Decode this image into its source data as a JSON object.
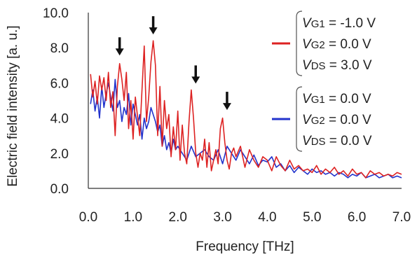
{
  "chart_data": {
    "type": "line",
    "xlabel": "Frequency [THz]",
    "ylabel": "Electric field intensity [a. u.]",
    "xlim": [
      0.0,
      7.0
    ],
    "ylim": [
      0.0,
      10.0
    ],
    "x_ticks": [
      "0.0",
      "1.0",
      "2.0",
      "3.0",
      "4.0",
      "5.0",
      "6.0",
      "7.0"
    ],
    "y_ticks": [
      "0.0",
      "2.0",
      "4.0",
      "6.0",
      "8.0",
      "10.0"
    ],
    "grid": false,
    "legend_position": "top-right",
    "series": [
      {
        "color": "#dd2222",
        "legend": [
          {
            "var": "V",
            "sub": "G1",
            "rest": " = -1.0 V"
          },
          {
            "var": "V",
            "sub": "G2",
            "rest": " =  0.0 V"
          },
          {
            "var": "V",
            "sub": "DS",
            "rest": " =  3.0 V"
          }
        ],
        "x": [
          0.05,
          0.1,
          0.15,
          0.2,
          0.25,
          0.3,
          0.35,
          0.4,
          0.45,
          0.5,
          0.55,
          0.6,
          0.65,
          0.7,
          0.75,
          0.8,
          0.85,
          0.9,
          0.95,
          1.0,
          1.05,
          1.1,
          1.15,
          1.2,
          1.25,
          1.3,
          1.35,
          1.4,
          1.45,
          1.5,
          1.55,
          1.6,
          1.65,
          1.7,
          1.75,
          1.8,
          1.85,
          1.9,
          1.95,
          2.0,
          2.05,
          2.1,
          2.15,
          2.2,
          2.25,
          2.3,
          2.35,
          2.4,
          2.45,
          2.5,
          2.55,
          2.6,
          2.65,
          2.7,
          2.75,
          2.8,
          2.85,
          2.9,
          2.95,
          3.0,
          3.05,
          3.1,
          3.15,
          3.2,
          3.25,
          3.3,
          3.4,
          3.5,
          3.6,
          3.7,
          3.8,
          3.9,
          4.0,
          4.1,
          4.2,
          4.3,
          4.4,
          4.5,
          4.6,
          4.7,
          4.8,
          4.9,
          5.0,
          5.1,
          5.2,
          5.3,
          5.4,
          5.5,
          5.6,
          5.7,
          5.8,
          5.9,
          6.0,
          6.1,
          6.2,
          6.3,
          6.4,
          6.5,
          6.6,
          6.7,
          6.8,
          6.9,
          7.0
        ],
        "values": [
          6.5,
          5.2,
          6.1,
          4.8,
          6.4,
          5.6,
          6.3,
          5.0,
          6.6,
          4.6,
          5.5,
          3.0,
          5.8,
          7.1,
          6.2,
          5.0,
          6.6,
          3.4,
          5.0,
          2.8,
          5.2,
          4.1,
          3.0,
          5.6,
          8.1,
          3.8,
          5.2,
          7.2,
          8.4,
          7.0,
          3.0,
          5.8,
          2.4,
          5.0,
          3.4,
          4.2,
          1.8,
          3.5,
          2.2,
          4.4,
          1.6,
          3.6,
          2.0,
          1.4,
          3.8,
          5.6,
          4.0,
          2.0,
          1.2,
          2.0,
          1.6,
          2.8,
          1.2,
          2.6,
          1.0,
          1.6,
          2.2,
          1.4,
          3.4,
          4.0,
          2.6,
          1.6,
          1.1,
          2.0,
          2.3,
          1.8,
          2.4,
          1.2,
          2.2,
          1.6,
          1.2,
          1.8,
          1.6,
          1.0,
          1.8,
          1.3,
          1.0,
          1.6,
          1.1,
          1.3,
          1.0,
          1.1,
          0.9,
          1.3,
          0.8,
          1.1,
          0.9,
          1.2,
          0.8,
          1.0,
          0.7,
          1.1,
          0.8,
          0.9,
          0.6,
          1.0,
          0.8,
          0.9,
          0.7,
          0.8,
          0.7,
          0.9,
          0.8
        ]
      },
      {
        "color": "#2233cc",
        "legend": [
          {
            "var": "V",
            "sub": "G1",
            "rest": " =  0.0 V"
          },
          {
            "var": "V",
            "sub": "G2",
            "rest": " =  0.0 V"
          },
          {
            "var": "V",
            "sub": "DS",
            "rest": " =  0.0 V"
          }
        ],
        "x": [
          0.05,
          0.1,
          0.15,
          0.2,
          0.25,
          0.3,
          0.35,
          0.4,
          0.45,
          0.5,
          0.55,
          0.6,
          0.65,
          0.7,
          0.75,
          0.8,
          0.85,
          0.9,
          0.95,
          1.0,
          1.05,
          1.1,
          1.15,
          1.2,
          1.25,
          1.3,
          1.35,
          1.4,
          1.45,
          1.5,
          1.55,
          1.6,
          1.65,
          1.7,
          1.75,
          1.8,
          1.85,
          1.9,
          1.95,
          2.0,
          2.1,
          2.2,
          2.3,
          2.4,
          2.5,
          2.6,
          2.7,
          2.8,
          2.9,
          3.0,
          3.1,
          3.2,
          3.3,
          3.4,
          3.5,
          3.6,
          3.7,
          3.8,
          3.9,
          4.0,
          4.1,
          4.2,
          4.3,
          4.4,
          4.5,
          4.6,
          4.7,
          4.8,
          4.9,
          5.0,
          5.1,
          5.2,
          5.3,
          5.4,
          5.5,
          5.6,
          5.7,
          5.8,
          5.9,
          6.0,
          6.1,
          6.2,
          6.3,
          6.4,
          6.5,
          6.6,
          6.7,
          6.8,
          6.9,
          7.0
        ],
        "values": [
          4.8,
          5.6,
          4.4,
          5.2,
          4.0,
          5.8,
          4.6,
          5.4,
          6.0,
          5.2,
          4.4,
          6.2,
          4.6,
          5.0,
          3.8,
          4.6,
          4.2,
          5.4,
          3.6,
          4.8,
          4.2,
          3.6,
          4.2,
          2.8,
          4.0,
          3.4,
          3.8,
          4.6,
          4.2,
          3.8,
          3.2,
          3.6,
          2.4,
          3.0,
          2.2,
          2.6,
          2.0,
          2.8,
          2.2,
          2.4,
          2.0,
          1.6,
          2.4,
          1.8,
          2.0,
          2.2,
          1.8,
          1.6,
          2.2,
          1.4,
          2.4,
          2.0,
          1.6,
          2.2,
          1.8,
          1.4,
          1.9,
          1.3,
          1.6,
          1.5,
          1.8,
          1.2,
          1.4,
          1.0,
          1.3,
          0.9,
          1.2,
          1.0,
          0.8,
          1.1,
          0.9,
          1.0,
          0.8,
          0.9,
          0.7,
          0.9,
          0.8,
          0.6,
          0.8,
          0.7,
          0.9,
          0.6,
          0.7,
          0.8,
          0.6,
          0.7,
          0.8,
          0.6,
          0.7,
          0.6
        ]
      }
    ],
    "annotations": [
      {
        "type": "arrow",
        "x": 0.7,
        "y": 7.4
      },
      {
        "type": "arrow",
        "x": 1.45,
        "y": 8.6
      },
      {
        "type": "arrow",
        "x": 2.4,
        "y": 5.8
      },
      {
        "type": "arrow",
        "x": 3.1,
        "y": 4.3
      }
    ]
  }
}
